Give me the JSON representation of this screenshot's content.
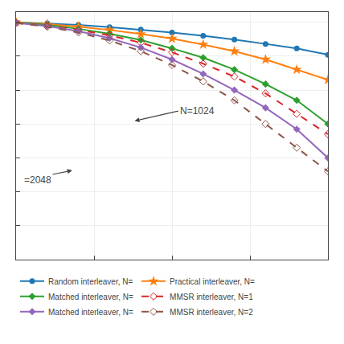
{
  "chart_data": {
    "type": "line",
    "log": "y",
    "grid": true,
    "legend": "bottom",
    "tick_labels": false,
    "annotations": [
      {
        "text": "N=1024"
      },
      {
        "text": "=2048"
      }
    ],
    "x": [
      0.0,
      0.4,
      0.8,
      1.2,
      1.6,
      2.0,
      2.4,
      2.8,
      3.2,
      3.6,
      4.0
    ],
    "series": [
      {
        "name": "Random interleaver, N=",
        "marker": "circle",
        "line_style": "solid",
        "values": [
          1.0,
          0.93,
          0.83,
          0.72,
          0.61,
          0.5,
          0.4,
          0.31,
          0.23,
          0.17,
          0.11
        ]
      },
      {
        "name": "Practical interleaver, N=",
        "marker": "star",
        "line_style": "solid",
        "values": [
          1.0,
          0.88,
          0.74,
          0.59,
          0.45,
          0.33,
          0.22,
          0.14,
          0.08,
          0.04,
          0.02
        ]
      },
      {
        "name": "Matched interleaver, N=",
        "marker": "diamond",
        "line_style": "solid",
        "values": [
          0.98,
          0.83,
          0.64,
          0.46,
          0.3,
          0.17,
          0.09,
          0.04,
          0.015,
          0.005,
          0.001
        ]
      },
      {
        "name": "MMSR interleaver, N=1",
        "marker": "diamond-open",
        "line_style": "dashed",
        "values": [
          0.97,
          0.8,
          0.6,
          0.41,
          0.25,
          0.13,
          0.06,
          0.025,
          0.008,
          0.002,
          0.0005
        ]
      },
      {
        "name": "Matched interleaver, N=",
        "marker": "diamond",
        "line_style": "solid",
        "values": [
          0.96,
          0.77,
          0.55,
          0.34,
          0.18,
          0.08,
          0.03,
          0.01,
          0.003,
          0.0007,
          0.0001
        ]
      },
      {
        "name": "MMSR interleaver, N=2",
        "marker": "diamond-open",
        "line_style": "dashed",
        "values": [
          0.95,
          0.74,
          0.5,
          0.29,
          0.14,
          0.055,
          0.018,
          0.005,
          0.001,
          0.0002,
          4e-05
        ]
      }
    ],
    "xlim": [
      0.0,
      4.0
    ],
    "xticks": [
      0,
      1,
      2,
      3,
      4
    ],
    "ylim": [
      1e-07,
      2.0
    ],
    "yticks": [
      1e-07,
      1e-06,
      1e-05,
      0.0001,
      0.001,
      0.01,
      0.1,
      1
    ]
  }
}
